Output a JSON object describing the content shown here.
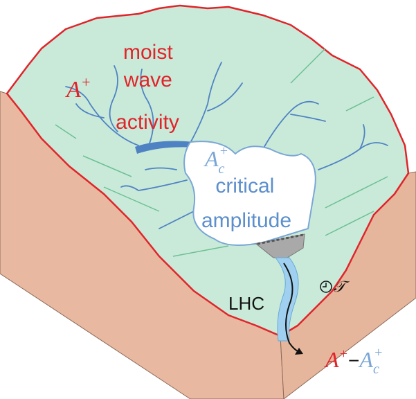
{
  "labels": {
    "moist_wave_activity": [
      "moist",
      "wave",
      "activity"
    ],
    "A_plus": {
      "base": "A",
      "sup": "+"
    },
    "A_c_plus": {
      "base": "A",
      "sub": "c",
      "sup": "+"
    },
    "critical_amplitude": [
      "critical",
      "amplitude"
    ],
    "lhc": "LHC",
    "timescale": "𝒯",
    "outflow": {
      "left": {
        "base": "A",
        "sup": "+"
      },
      "minus": "−",
      "right": {
        "base": "A",
        "sub": "c",
        "sup": "+"
      }
    }
  }
}
